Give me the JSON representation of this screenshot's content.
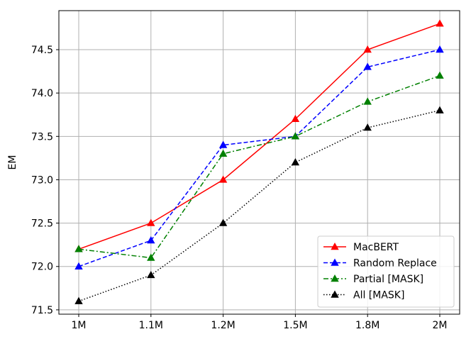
{
  "chart_data": {
    "type": "line",
    "title": "",
    "xlabel": "",
    "ylabel": "EM",
    "categories": [
      "1M",
      "1.1M",
      "1.2M",
      "1.5M",
      "1.8M",
      "2M"
    ],
    "ylim": [
      71.45,
      74.95
    ],
    "yticks": [
      71.5,
      72.0,
      72.5,
      73.0,
      73.5,
      74.0,
      74.5
    ],
    "ytick_labels": [
      "71.5",
      "72.0",
      "72.5",
      "73.0",
      "73.5",
      "74.0",
      "74.5"
    ],
    "grid": true,
    "legend_position": "bottom-right",
    "series": [
      {
        "name": "MacBERT",
        "values": [
          72.2,
          72.5,
          73.0,
          73.7,
          74.5,
          74.8
        ],
        "color": "#ff0000",
        "line_style": "solid",
        "marker": "triangle"
      },
      {
        "name": "Random Replace",
        "values": [
          72.0,
          72.3,
          73.4,
          73.5,
          74.3,
          74.5
        ],
        "color": "#0000ff",
        "line_style": "dashed",
        "marker": "triangle"
      },
      {
        "name": "Partial [MASK]",
        "values": [
          72.2,
          72.1,
          73.3,
          73.5,
          73.9,
          74.2
        ],
        "color": "#008000",
        "line_style": "dashdot",
        "marker": "triangle"
      },
      {
        "name": "All [MASK]",
        "values": [
          71.6,
          71.9,
          72.5,
          73.2,
          73.6,
          73.8
        ],
        "color": "#000000",
        "line_style": "dotted",
        "marker": "triangle"
      }
    ]
  }
}
